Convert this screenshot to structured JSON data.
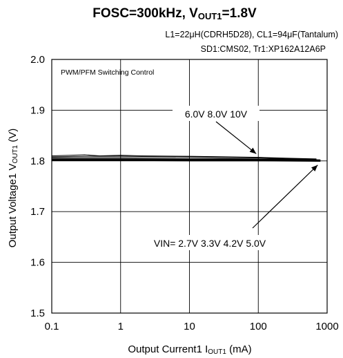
{
  "chart_data": {
    "type": "line",
    "title_main": "FOSC=300kHz, V",
    "title_sub": "OUT1",
    "title_tail": "=1.8V",
    "subtitle_lines": [
      "L1=22μH(CDRH5D28), CL1=94μF(Tantalum)",
      "SD1:CMS02, Tr1:XP162A12A6P"
    ],
    "note": "PWM/PFM Switching Control",
    "xlabel_main": "Output Current1  I",
    "xlabel_sub": "OUT1",
    "xlabel_tail": " (mA)",
    "ylabel_main": "Output Voltage1  V",
    "ylabel_sub": "OUT1",
    "ylabel_tail": " (V)",
    "x_scale": "log",
    "xlim": [
      0.1,
      1000
    ],
    "ylim": [
      1.5,
      2.0
    ],
    "x_ticks": [
      0.1,
      1,
      10,
      100,
      1000
    ],
    "x_tick_labels": [
      "0.1",
      "1",
      "10",
      "100",
      "1000"
    ],
    "y_ticks": [
      1.5,
      1.6,
      1.7,
      1.8,
      1.9,
      2.0
    ],
    "y_tick_labels": [
      "1.5",
      "1.6",
      "1.7",
      "1.8",
      "1.9",
      "2.0"
    ],
    "grid": true,
    "annotations": [
      {
        "text": "6.0V 8.0V 10V",
        "arrow_to": [
          100,
          1.81
        ]
      },
      {
        "text": "VIN= 2.7V 3.3V 4.2V 5.0V",
        "arrow_to": [
          800,
          1.8
        ]
      }
    ],
    "series": [
      {
        "x": [
          0.1,
          0.3,
          0.5,
          1,
          2,
          10,
          100,
          300,
          700
        ],
        "y": [
          1.81,
          1.812,
          1.81,
          1.811,
          1.81,
          1.809,
          1.807,
          1.805,
          1.804
        ]
      },
      {
        "x": [
          0.1,
          0.3,
          1,
          10,
          100,
          300,
          700
        ],
        "y": [
          1.808,
          1.809,
          1.809,
          1.808,
          1.806,
          1.804,
          1.803
        ]
      },
      {
        "x": [
          0.1,
          1,
          10,
          100,
          400,
          800
        ],
        "y": [
          1.806,
          1.806,
          1.805,
          1.804,
          1.803,
          1.802
        ]
      },
      {
        "x": [
          0.1,
          1,
          10,
          100,
          400,
          800
        ],
        "y": [
          1.804,
          1.804,
          1.803,
          1.803,
          1.802,
          1.801
        ]
      },
      {
        "x": [
          0.1,
          1,
          10,
          100,
          800
        ],
        "y": [
          1.803,
          1.803,
          1.802,
          1.802,
          1.8
        ]
      },
      {
        "x": [
          0.1,
          1,
          10,
          100,
          800
        ],
        "y": [
          1.802,
          1.802,
          1.801,
          1.801,
          1.8
        ]
      },
      {
        "x": [
          0.1,
          1,
          10,
          100,
          800
        ],
        "y": [
          1.801,
          1.801,
          1.8,
          1.8,
          1.799
        ]
      }
    ]
  }
}
